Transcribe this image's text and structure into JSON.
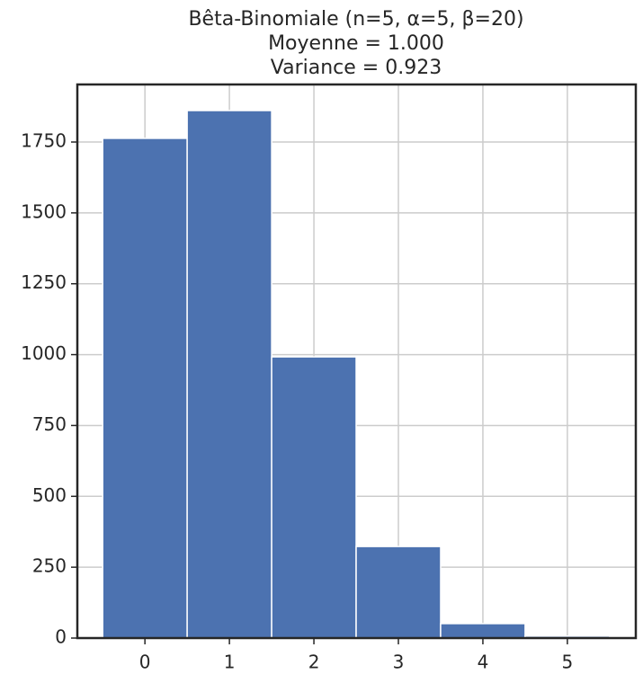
{
  "chart_data": {
    "type": "histogram",
    "title": [
      "Bêta-Binomiale (n=5, α=5, β=20)",
      "Moyenne =  1.000",
      "Variance =  0.923"
    ],
    "bins": [
      -0.5,
      0.5,
      1.5,
      2.5,
      3.5,
      4.5,
      5.5
    ],
    "values": [
      1763,
      1861,
      992,
      323,
      51,
      7
    ],
    "color": "#4c72b0",
    "xlim": [
      -0.8,
      5.81
    ],
    "xticks": [
      0,
      1,
      2,
      3,
      4,
      5
    ],
    "ylim": [
      0,
      1953
    ],
    "yticks": [
      0,
      250,
      500,
      750,
      1000,
      1250,
      1500,
      1750
    ],
    "grid": true
  }
}
